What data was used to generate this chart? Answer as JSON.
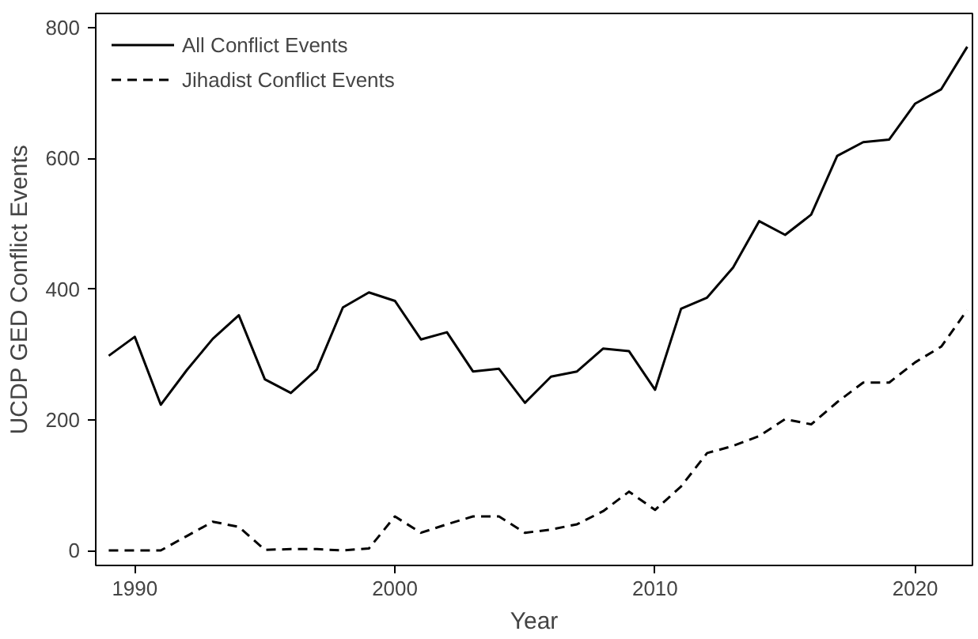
{
  "chart_data": {
    "type": "line",
    "xlabel": "Year",
    "ylabel": "UCDP GED Conflict Events",
    "x": [
      1989,
      1990,
      1991,
      1992,
      1993,
      1994,
      1995,
      1996,
      1997,
      1998,
      1999,
      2000,
      2001,
      2002,
      2003,
      2004,
      2005,
      2006,
      2007,
      2008,
      2009,
      2010,
      2011,
      2012,
      2013,
      2014,
      2015,
      2016,
      2017,
      2018,
      2019,
      2020,
      2021,
      2022
    ],
    "series": [
      {
        "name": "All Conflict Events",
        "color": "#000000",
        "line_style": "solid",
        "values": [
          298,
          327,
          223,
          276,
          324,
          360,
          262,
          241,
          277,
          372,
          395,
          382,
          323,
          334,
          274,
          278,
          226,
          266,
          274,
          309,
          305,
          246,
          370,
          387,
          433,
          504,
          483,
          514,
          604,
          625,
          629,
          684,
          706,
          771
        ]
      },
      {
        "name": "Jihadist Conflict Events",
        "color": "#000000",
        "line_style": "dashed",
        "values": [
          0,
          0,
          0,
          22,
          44,
          36,
          1,
          2,
          2,
          0,
          3,
          52,
          27,
          40,
          52,
          52,
          27,
          32,
          40,
          60,
          90,
          62,
          98,
          149,
          160,
          175,
          201,
          193,
          227,
          257,
          257,
          288,
          312,
          368
        ]
      }
    ],
    "xlim": [
      1988.5,
      2022.2
    ],
    "ylim": [
      -23,
      822
    ],
    "xticks": [
      1990,
      2000,
      2010,
      2020
    ],
    "yticks": [
      0,
      200,
      400,
      600,
      800
    ],
    "grid": false,
    "legend": "top left",
    "marker": "none"
  }
}
